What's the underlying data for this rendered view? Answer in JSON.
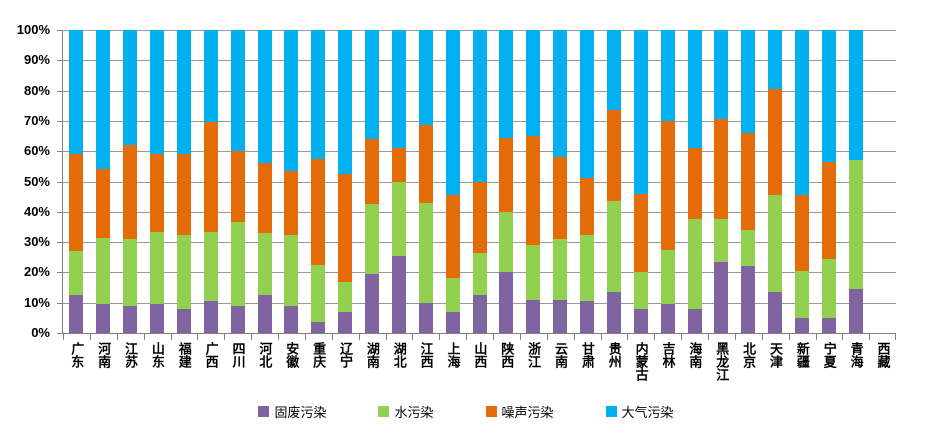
{
  "chart_data": {
    "type": "bar",
    "stacked": true,
    "percent_stacked": true,
    "title": "",
    "xlabel": "",
    "ylabel": "",
    "ylim": [
      0,
      100
    ],
    "grid": true,
    "legend_position": "bottom",
    "y_ticks": [
      "0%",
      "10%",
      "20%",
      "30%",
      "40%",
      "50%",
      "60%",
      "70%",
      "80%",
      "90%",
      "100%"
    ],
    "categories": [
      "广东",
      "河南",
      "江苏",
      "山东",
      "福建",
      "广西",
      "四川",
      "河北",
      "安徽",
      "重庆",
      "辽宁",
      "湖南",
      "湖北",
      "江西",
      "上海",
      "山西",
      "陕西",
      "浙江",
      "云南",
      "甘肃",
      "贵州",
      "内蒙古",
      "吉林",
      "海南",
      "黑龙江",
      "北京",
      "天津",
      "新疆",
      "宁夏",
      "青海",
      "西藏"
    ],
    "series": [
      {
        "name": "固废污染",
        "color": "#8064A2",
        "values": [
          12.5,
          9.5,
          9,
          9.5,
          8,
          10.5,
          9,
          12.5,
          9,
          3.5,
          7,
          19.5,
          25.5,
          10,
          7,
          12.5,
          20,
          11,
          11,
          10.5,
          13.5,
          8,
          9.5,
          8,
          23.5,
          22,
          13.5,
          5,
          5,
          14.5,
          0
        ]
      },
      {
        "name": "水污染",
        "color": "#92D050",
        "values": [
          14.5,
          22,
          22,
          24,
          24.5,
          23,
          27.5,
          20.5,
          23.5,
          19,
          10,
          23,
          24.5,
          33,
          11,
          14,
          20,
          18,
          20,
          22,
          30,
          12,
          18,
          29.5,
          14,
          12,
          32,
          15.5,
          19.5,
          42.5,
          0
        ]
      },
      {
        "name": "噪声污染",
        "color": "#E36C09",
        "values": [
          32,
          22.5,
          31,
          25.5,
          26.5,
          36,
          23.5,
          23,
          21,
          35,
          35.5,
          21.5,
          11,
          25.5,
          27.5,
          23.5,
          24.5,
          36,
          27,
          18.5,
          30,
          26,
          42.5,
          23.5,
          33,
          32,
          35,
          25,
          32,
          0,
          0
        ]
      },
      {
        "name": "大气污染",
        "color": "#00B0F0",
        "values": [
          41,
          46,
          38,
          41,
          41,
          30.5,
          40,
          44,
          46.5,
          42.5,
          47.5,
          36,
          39,
          31.5,
          54.5,
          50,
          35.5,
          35,
          42,
          49,
          26.5,
          54,
          30,
          39,
          29.5,
          34,
          19.5,
          54.5,
          43.5,
          43,
          0
        ]
      }
    ]
  }
}
